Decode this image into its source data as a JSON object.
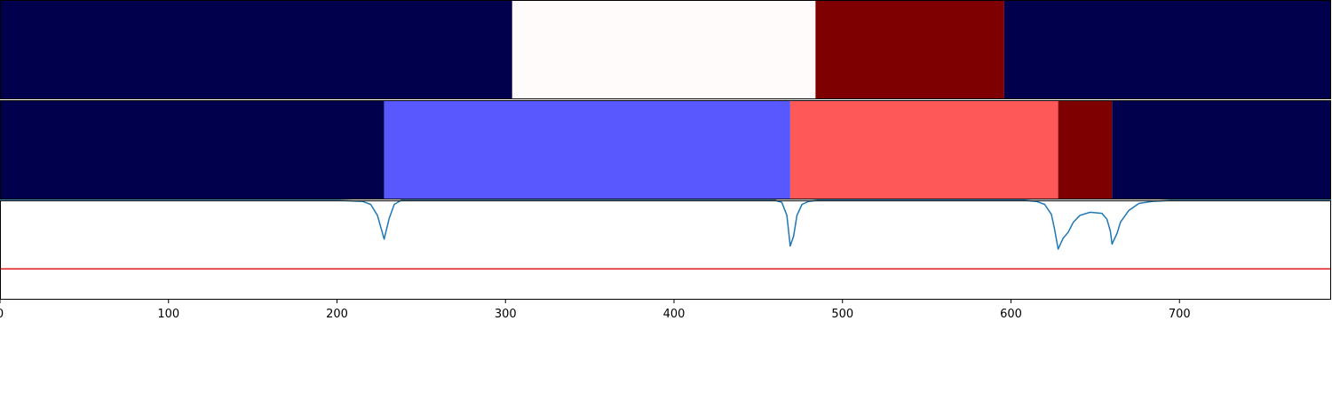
{
  "chart_data": [
    {
      "type": "heatmap",
      "title": "",
      "xlim": [
        0,
        790
      ],
      "segments": [
        {
          "start": 0,
          "end": 304,
          "color": "#00004c"
        },
        {
          "start": 304,
          "end": 484,
          "color": "#fffbfb"
        },
        {
          "start": 484,
          "end": 596,
          "color": "#7f0000"
        },
        {
          "start": 596,
          "end": 790,
          "color": "#00004c"
        }
      ]
    },
    {
      "type": "heatmap",
      "title": "",
      "xlim": [
        0,
        790
      ],
      "segments": [
        {
          "start": 0,
          "end": 228,
          "color": "#00004c"
        },
        {
          "start": 228,
          "end": 469,
          "color": "#5858ff"
        },
        {
          "start": 469,
          "end": 628,
          "color": "#ff5858"
        },
        {
          "start": 628,
          "end": 660,
          "color": "#7f0000"
        },
        {
          "start": 660,
          "end": 790,
          "color": "#00004c"
        }
      ]
    },
    {
      "type": "line",
      "title": "",
      "xlabel": "",
      "ylabel": "",
      "xlim": [
        0,
        790
      ],
      "ylim": [
        0,
        1
      ],
      "xticks": [
        0,
        100,
        200,
        300,
        400,
        500,
        600,
        700
      ],
      "threshold": {
        "y": 0.31,
        "color": "#e31a1c"
      },
      "series": [
        {
          "color": "#1f77b4",
          "points": [
            [
              0,
              1.0
            ],
            [
              200,
              1.0
            ],
            [
              215,
              0.99
            ],
            [
              220,
              0.96
            ],
            [
              224,
              0.85
            ],
            [
              228,
              0.61
            ],
            [
              231,
              0.82
            ],
            [
              234,
              0.96
            ],
            [
              238,
              1.0
            ],
            [
              460,
              1.0
            ],
            [
              464,
              0.98
            ],
            [
              467,
              0.85
            ],
            [
              469,
              0.54
            ],
            [
              471,
              0.64
            ],
            [
              473,
              0.85
            ],
            [
              476,
              0.96
            ],
            [
              480,
              0.99
            ],
            [
              485,
              1.0
            ],
            [
              608,
              1.0
            ],
            [
              615,
              0.99
            ],
            [
              620,
              0.96
            ],
            [
              624,
              0.86
            ],
            [
              626,
              0.7
            ],
            [
              628,
              0.51
            ],
            [
              631,
              0.62
            ],
            [
              634,
              0.68
            ],
            [
              637,
              0.78
            ],
            [
              641,
              0.85
            ],
            [
              647,
              0.88
            ],
            [
              654,
              0.87
            ],
            [
              657,
              0.81
            ],
            [
              659,
              0.69
            ],
            [
              660,
              0.56
            ],
            [
              663,
              0.67
            ],
            [
              665,
              0.78
            ],
            [
              670,
              0.9
            ],
            [
              676,
              0.97
            ],
            [
              684,
              0.99
            ],
            [
              695,
              1.0
            ],
            [
              790,
              1.0
            ]
          ]
        }
      ]
    }
  ]
}
